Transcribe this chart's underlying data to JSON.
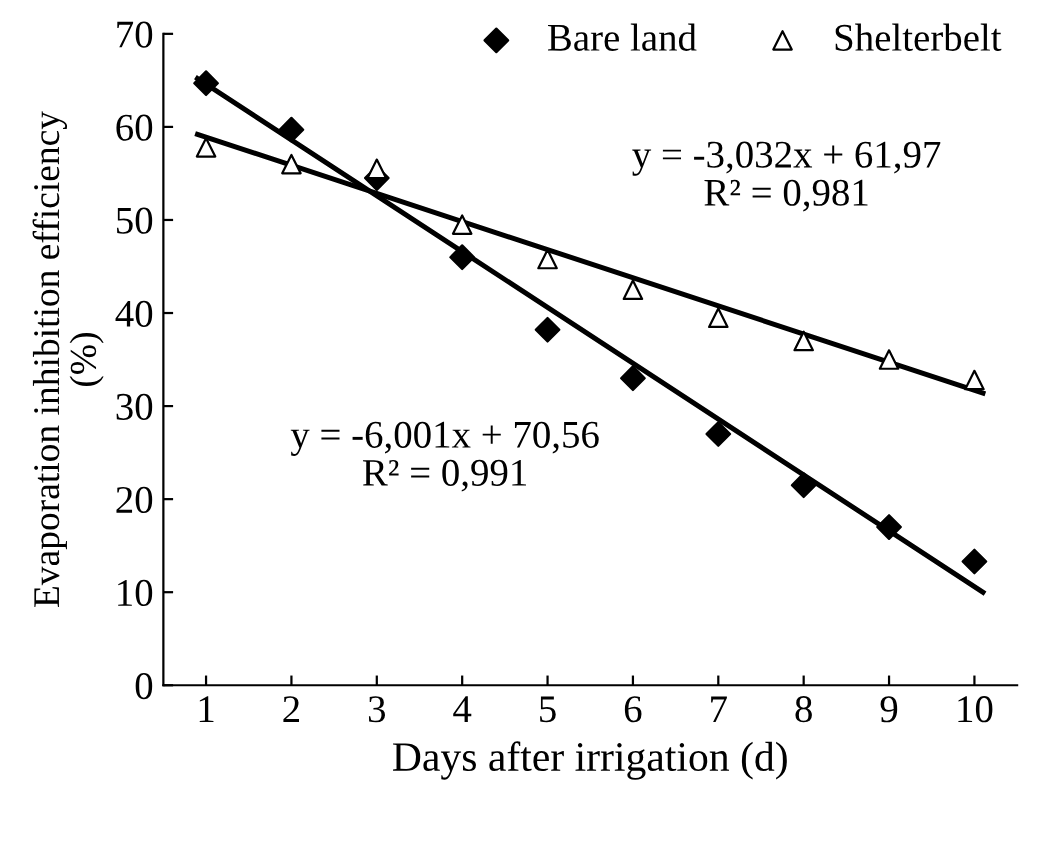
{
  "chart_data": {
    "type": "scatter",
    "xlabel": "Days after irrigation (d)",
    "ylabel": "Evaporation inhibition efficiency\n(%)",
    "xlim": [
      0.5,
      10.5
    ],
    "xticks": [
      1,
      2,
      3,
      4,
      5,
      6,
      7,
      8,
      9,
      10
    ],
    "ylim": [
      0,
      70
    ],
    "yticks": [
      0,
      10,
      20,
      30,
      40,
      50,
      60,
      70
    ],
    "grid": false,
    "legend": "top right",
    "series": [
      {
        "name": "Bare land",
        "marker": "diamond",
        "color": "#000000",
        "x": [
          1,
          2,
          3,
          4,
          5,
          6,
          7,
          8,
          9,
          10
        ],
        "values": [
          64.7,
          59.7,
          54.5,
          46.0,
          38.2,
          33.0,
          27.0,
          21.5,
          17.0,
          13.3
        ]
      },
      {
        "name": "Shelterbelt",
        "marker": "triangle",
        "color": "#000000",
        "x": [
          1,
          2,
          3,
          4,
          5,
          6,
          7,
          8,
          9,
          10
        ],
        "values": [
          57.8,
          56.0,
          55.5,
          49.5,
          45.8,
          42.5,
          39.5,
          37.0,
          35.0,
          32.8
        ]
      },
      {
        "type": "line",
        "color": "#000000",
        "x": [
          0.9,
          10.1
        ],
        "values": [
          65.2,
          10.0
        ]
      },
      {
        "type": "line",
        "color": "#000000",
        "x": [
          0.9,
          10.1
        ],
        "values": [
          59.2,
          31.4
        ]
      }
    ],
    "annotations": [
      "y = -3,032x + 61,97\nR² = 0,981",
      "y = -6,001x + 70,56\nR² = 0,991"
    ]
  }
}
